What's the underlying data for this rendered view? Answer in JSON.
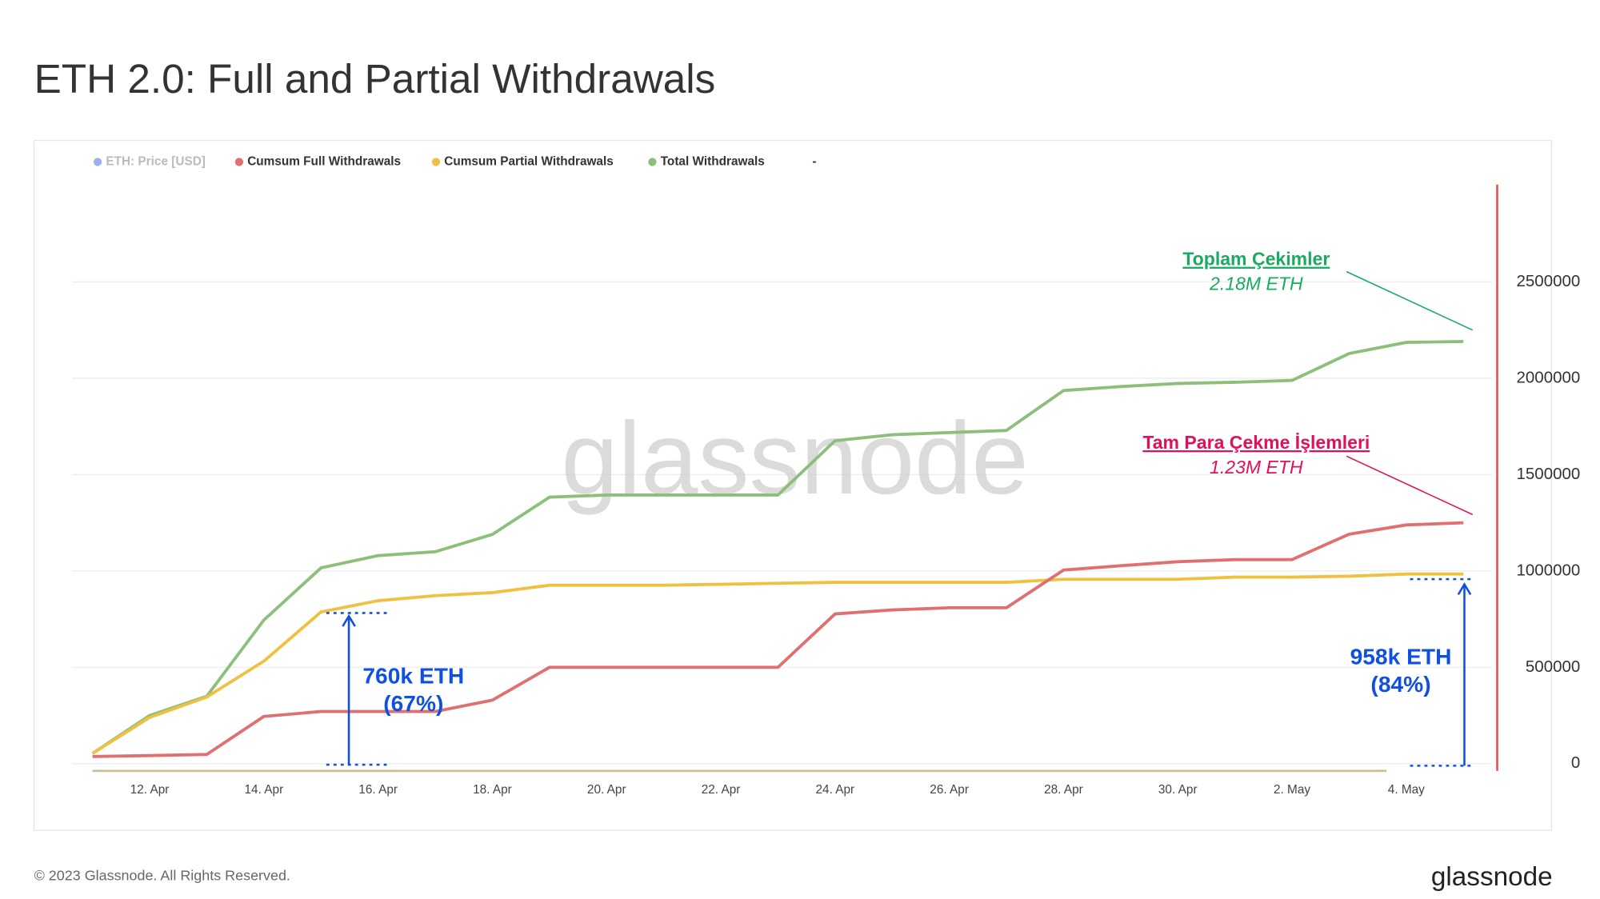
{
  "chart_data": {
    "type": "line",
    "title": "ETH 2.0: Full and Partial Withdrawals",
    "categories": [
      null,
      "12. Apr",
      null,
      "14. Apr",
      null,
      "16. Apr",
      null,
      "18. Apr",
      null,
      "20. Apr",
      null,
      "22. Apr",
      null,
      "24. Apr",
      null,
      "26. Apr",
      null,
      "28. Apr",
      null,
      "30. Apr",
      null,
      "2. May",
      null,
      "4. May",
      null
    ],
    "series": [
      {
        "name": "ETH: Price [USD]",
        "color": "#5b7be0",
        "hidden": true
      },
      {
        "name": "Cumsum Full Withdrawals",
        "color": "#e07070",
        "values": [
          37000,
          42000,
          48000,
          245000,
          271000,
          271000,
          271000,
          330000,
          500000,
          500000,
          500000,
          500000,
          500000,
          777000,
          798000,
          809000,
          809000,
          1005000,
          1027000,
          1048000,
          1059000,
          1059000,
          1191000,
          1239000,
          1250000
        ]
      },
      {
        "name": "Cumsum Partial Withdrawals",
        "color": "#f0c040",
        "values": [
          53000,
          240000,
          346000,
          532000,
          787000,
          846000,
          872000,
          888000,
          926000,
          926000,
          926000,
          931000,
          936000,
          941000,
          941000,
          941000,
          941000,
          957000,
          957000,
          957000,
          968000,
          968000,
          973000,
          984000,
          984000
        ]
      },
      {
        "name": "Total Withdrawals",
        "color": "#8cc07a",
        "values": [
          53000,
          250000,
          350000,
          745000,
          1016000,
          1080000,
          1100000,
          1190000,
          1383000,
          1394000,
          1394000,
          1394000,
          1394000,
          1676000,
          1707000,
          1718000,
          1729000,
          1936000,
          1957000,
          1973000,
          1979000,
          1989000,
          2128000,
          2186000,
          2191000
        ]
      },
      {
        "name": "-",
        "color": "#333333",
        "hidden": true
      }
    ],
    "ylim": [
      0,
      3000000
    ],
    "yticks": [
      0,
      500000,
      1000000,
      1500000,
      2000000,
      2500000
    ],
    "grid": true,
    "annotations": {
      "total": {
        "title": "Toplam Çekimler",
        "value": "2.18M ETH"
      },
      "full": {
        "title": "Tam Para Çekme İşlemleri",
        "value": "1.23M ETH"
      },
      "partial_start": {
        "value": "760k ETH",
        "share": "(67%)"
      },
      "partial_end": {
        "value": "958k ETH",
        "share": "(84%)"
      }
    },
    "watermark": "glassnode",
    "footer": "© 2023 Glassnode. All Rights Reserved.",
    "logo": "glassnode"
  }
}
